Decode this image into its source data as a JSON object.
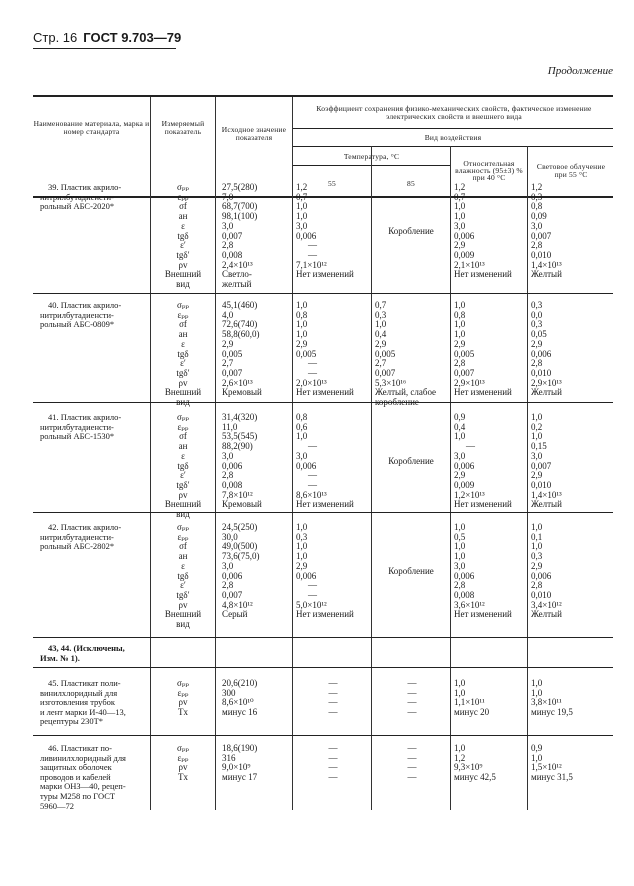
{
  "page": {
    "page_label": "Стр. 16",
    "standard": "ГОСТ 9.703—79",
    "continuation": "Продолжение"
  },
  "header": {
    "col_material": "Наименование материала, марка и номер стандарта",
    "col_param": "Измеряемый показатель",
    "col_initial": "Исходное значение показателя",
    "coefficient": "Коэффициент сохранения физико-механических свойств, фактическое изменение электрических свойств и внешнего вида",
    "impact_type": "Вид воздействия",
    "temperature": "Температура, °С",
    "t55": "55",
    "t85": "85",
    "humidity": "Относительная влажность (95±3) % при 40 °С",
    "light": "Световое облучение при 55 °С"
  },
  "rows": [
    {
      "name": [
        "39. Пластик акрило-",
        "нитрилбутадиенсти-",
        "рольный АБС-2020*"
      ],
      "params": [
        "σₚₚ",
        "εₚₚ",
        "σf",
        "aн",
        "ε",
        "tgδ",
        "ε′",
        "tgδ′",
        "ρv",
        "Внешний\nвид"
      ],
      "initial": [
        "27,5(280)",
        "7,0",
        "68,7(700)",
        "98,1(100)",
        "3,0",
        "0,007",
        "2,8",
        "0,008",
        "2,4×10¹³",
        "Светло-\nжелтый"
      ],
      "t55": [
        "1,2",
        "0,7",
        "1,0",
        "1,0",
        "3,0",
        "0,006",
        "—",
        "—",
        "7,1×10¹²",
        "Нет изменений"
      ],
      "t85_merged": "Коробление",
      "humidity": [
        "1,2",
        "0,7",
        "1,0",
        "1,0",
        "3,0",
        "0,006",
        "2,9",
        "0,009",
        "2,1×10¹³",
        "Нет изменений"
      ],
      "light": [
        "1,2",
        "0,3",
        "0,8",
        "0,09",
        "3,0",
        "0,007",
        "2,8",
        "0,010",
        "1,4×10¹³",
        "Желтый"
      ]
    },
    {
      "name": [
        "40. Пластик акрило-",
        "нитрилбутадиенсти-",
        "рольный АБС-0809*"
      ],
      "params": [
        "σₚₚ",
        "εₚₚ",
        "σf",
        "aн",
        "ε",
        "tgδ",
        "ε′",
        "tgδ′",
        "ρv",
        "Внешний\nвид"
      ],
      "initial": [
        "45,1(460)",
        "4,0",
        "72,6(740)",
        "58,8(60,0)",
        "2,9",
        "0,005",
        "2,7",
        "0,007",
        "2,6×10¹³",
        "Кремовый"
      ],
      "t55": [
        "1,0",
        "0,8",
        "1,0",
        "1,0",
        "2,9",
        "0,005",
        "—",
        "—",
        "2,0×10¹³",
        "Нет изменений"
      ],
      "t85": [
        "0,7",
        "0,3",
        "1,0",
        "0,4",
        "2,9",
        "0,005",
        "2,7",
        "0,007",
        "5,3×10¹⁶",
        "Желтый, слабое\nкоробление"
      ],
      "humidity": [
        "1,0",
        "0,8",
        "1,0",
        "1,0",
        "2,9",
        "0,005",
        "2,8",
        "0,007",
        "2,9×10¹³",
        "Нет изменений"
      ],
      "light": [
        "0,3",
        "0,0",
        "0,3",
        "0,05",
        "2,9",
        "0,006",
        "2,8",
        "0,010",
        "2,9×10¹³",
        "Желтый"
      ]
    },
    {
      "name": [
        "41. Пластик акрило-",
        "нитрилбутадиенсти-",
        "рольный АБС-1530*"
      ],
      "params": [
        "σₚₚ",
        "εₚₚ",
        "σf",
        "aн",
        "ε",
        "tgδ",
        "ε′",
        "tgδ′",
        "ρv",
        "Внешний\nвид"
      ],
      "initial": [
        "31,4(320)",
        "11,0",
        "53,5(545)",
        "88,2(90)",
        "3,0",
        "0,006",
        "2,8",
        "0,008",
        "7,8×10¹²",
        "Кремовый"
      ],
      "t55": [
        "0,8",
        "0,6",
        "1,0",
        "—",
        "3,0",
        "0,006",
        "—",
        "—",
        "8,6×10¹³",
        "Нет изменений"
      ],
      "t85_merged": "Коробление",
      "humidity": [
        "0,9",
        "0,4",
        "1,0",
        "—",
        "3,0",
        "0,006",
        "2,9",
        "0,009",
        "1,2×10¹³",
        "Нет изменений"
      ],
      "light": [
        "1,0",
        "0,2",
        "1,0",
        "0,15",
        "3,0",
        "0,007",
        "2,9",
        "0,010",
        "1,4×10¹³",
        "Желтый"
      ]
    },
    {
      "name": [
        "42. Пластик акрило-",
        "нитрилбутадиенсти-",
        "рольный АБС-2802*"
      ],
      "params": [
        "σₚₚ",
        "εₚₚ",
        "σf",
        "aн",
        "ε",
        "tgδ",
        "ε′",
        "tgδ′",
        "ρv",
        "Внешний\nвид"
      ],
      "initial": [
        "24,5(250)",
        "30,0",
        "49,0(500)",
        "73,6(75,0)",
        "3,0",
        "0,006",
        "2,8",
        "0,007",
        "4,8×10¹²",
        "Серый"
      ],
      "t55": [
        "1,0",
        "0,3",
        "1,0",
        "1,0",
        "2,9",
        "0,006",
        "—",
        "—",
        "5,0×10¹²",
        "Нет изменений"
      ],
      "t85_merged": "Коробление",
      "humidity": [
        "1,0",
        "0,5",
        "1,0",
        "1,0",
        "3,0",
        "0,006",
        "2,8",
        "0,008",
        "3,6×10¹²",
        "Нет изменений"
      ],
      "light": [
        "1,0",
        "0,1",
        "1,0",
        "0,3",
        "2,9",
        "0,006",
        "2,8",
        "0,010",
        "3,4×10¹²",
        "Желтый"
      ]
    },
    {
      "name": [
        "43, 44. (Исключены,",
        "Изм. № 1)."
      ],
      "bold": true
    },
    {
      "name": [
        "45. Пластикат поли-",
        "винилхлоридный для",
        "изготовления трубок",
        "и лент марки И-40—13,",
        "рецептуры 230Т*"
      ],
      "params": [
        "σₚₚ",
        "εₚₚ",
        "ρv",
        "Tх"
      ],
      "initial": [
        "20,6(210)",
        "300",
        "8,6×10¹⁰",
        "минус 16"
      ],
      "t55": [
        "—",
        "—",
        "—",
        "—"
      ],
      "t85": [
        "—",
        "—",
        "—",
        "—"
      ],
      "humidity": [
        "1,0",
        "1,0",
        "1,1×10¹¹",
        "минус 20"
      ],
      "light": [
        "1,0",
        "1,0",
        "3,8×10¹¹",
        "минус 19,5"
      ]
    },
    {
      "name": [
        "46. Пластикат по-",
        "ливинилхлоридный для",
        "защитных оболочек",
        "проводов и кабелей",
        "марки ОНЗ—40, рецеп-",
        "туры М258 по ГОСТ",
        "5960—72"
      ],
      "params": [
        "σₚₚ",
        "εₚₚ",
        "ρv",
        "Tх"
      ],
      "initial": [
        "18,6(190)",
        "316",
        "9,0×10⁹",
        "минус 17"
      ],
      "t55": [
        "—",
        "—",
        "—",
        "—"
      ],
      "t85": [
        "—",
        "—",
        "—",
        "—"
      ],
      "humidity": [
        "1,0",
        "1,2",
        "9,3×10⁹",
        "минус 42,5"
      ],
      "light": [
        "0,9",
        "1,0",
        "1,5×10¹²",
        "минус 31,5"
      ]
    }
  ]
}
